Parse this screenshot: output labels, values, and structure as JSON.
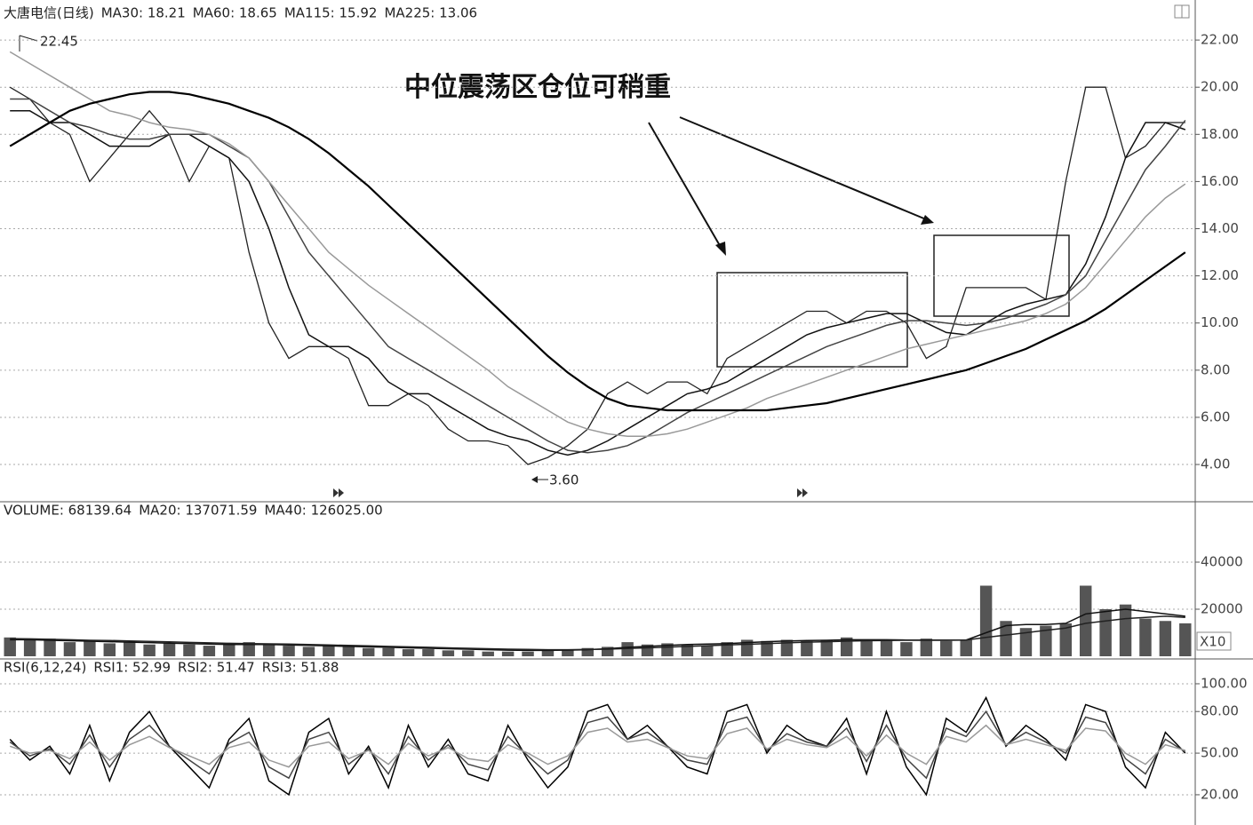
{
  "chart_data": [
    {
      "type": "line",
      "title": "大唐电信(日线)",
      "values": [
        20,
        19.5,
        18.5,
        18,
        16,
        17,
        18,
        19,
        18,
        16,
        17.5,
        17,
        13,
        10,
        8.5,
        9,
        9,
        8.5,
        6.5,
        6.5,
        7,
        6.5,
        5.5,
        5,
        5,
        4.8,
        4,
        4.3,
        4.8,
        5.5,
        7,
        7.5,
        7,
        7.5,
        7.5,
        7,
        8.5,
        9,
        9.5,
        10,
        10.5,
        10.5,
        10,
        10.5,
        10.5,
        10,
        8.5,
        9,
        11.5,
        11.5,
        11.5,
        11.5,
        11,
        16,
        20,
        20,
        17,
        17.5,
        18.5,
        18.5
      ],
      "color": "#222222",
      "series": [
        {
          "name": "MA30: 18.21",
          "color": "#111111",
          "values": [
            19,
            19,
            18.5,
            18.5,
            18,
            17.5,
            17.5,
            17.5,
            18,
            18,
            17.5,
            17,
            16,
            14,
            11.5,
            9.5,
            9,
            9,
            8.5,
            7.5,
            7,
            7,
            6.5,
            6,
            5.5,
            5.2,
            5,
            4.6,
            4.4,
            4.6,
            5,
            5.5,
            6,
            6.5,
            7,
            7.2,
            7.5,
            8,
            8.5,
            9,
            9.5,
            9.8,
            10,
            10.2,
            10.4,
            10.4,
            10,
            9.6,
            9.5,
            10,
            10.5,
            10.8,
            11,
            11.2,
            12.5,
            14.5,
            17,
            18.5,
            18.5,
            18.2
          ]
        },
        {
          "name": "MA60: 18.65",
          "color": "#444444",
          "values": [
            19.5,
            19.5,
            19,
            18.5,
            18.3,
            18,
            17.8,
            17.8,
            18,
            18,
            18,
            17.5,
            17,
            16,
            14.5,
            13,
            12,
            11,
            10,
            9,
            8.5,
            8,
            7.5,
            7,
            6.5,
            6,
            5.5,
            5,
            4.6,
            4.5,
            4.6,
            4.8,
            5.2,
            5.7,
            6.2,
            6.6,
            7,
            7.4,
            7.8,
            8.2,
            8.6,
            9,
            9.3,
            9.6,
            9.9,
            10.1,
            10.1,
            10,
            9.9,
            10,
            10.2,
            10.5,
            10.8,
            11.2,
            12,
            13.5,
            15,
            16.5,
            17.5,
            18.6
          ]
        },
        {
          "name": "MA115: 15.92",
          "color": "#999999",
          "values": [
            21.5,
            21,
            20.5,
            20,
            19.5,
            19,
            18.8,
            18.5,
            18.3,
            18.2,
            18,
            17.6,
            17,
            16,
            15,
            14,
            13,
            12.3,
            11.6,
            11,
            10.4,
            9.8,
            9.2,
            8.6,
            8,
            7.3,
            6.8,
            6.3,
            5.8,
            5.5,
            5.3,
            5.2,
            5.2,
            5.3,
            5.5,
            5.8,
            6.1,
            6.4,
            6.8,
            7.1,
            7.4,
            7.7,
            8,
            8.3,
            8.6,
            8.9,
            9.1,
            9.3,
            9.5,
            9.7,
            9.9,
            10.1,
            10.4,
            10.8,
            11.5,
            12.5,
            13.5,
            14.5,
            15.3,
            15.9
          ]
        },
        {
          "name": "MA225: 13.06",
          "color": "#000000",
          "values": [
            17.5,
            18,
            18.5,
            19,
            19.3,
            19.5,
            19.7,
            19.8,
            19.8,
            19.7,
            19.5,
            19.3,
            19,
            18.7,
            18.3,
            17.8,
            17.2,
            16.5,
            15.8,
            15,
            14.2,
            13.4,
            12.6,
            11.8,
            11,
            10.2,
            9.4,
            8.6,
            7.9,
            7.3,
            6.8,
            6.5,
            6.4,
            6.3,
            6.3,
            6.3,
            6.3,
            6.3,
            6.3,
            6.4,
            6.5,
            6.6,
            6.8,
            7,
            7.2,
            7.4,
            7.6,
            7.8,
            8,
            8.3,
            8.6,
            8.9,
            9.3,
            9.7,
            10.1,
            10.6,
            11.2,
            11.8,
            12.4,
            13
          ]
        }
      ],
      "ylim": [
        2.42,
        23.51
      ],
      "yticks": [
        {
          "value": 4,
          "label": "4.00"
        },
        {
          "value": 6,
          "label": "6.00"
        },
        {
          "value": 8,
          "label": "8.00"
        },
        {
          "value": 10,
          "label": "10.00"
        },
        {
          "value": 12,
          "label": "12.00"
        },
        {
          "value": 14,
          "label": "14.00"
        },
        {
          "value": 16,
          "label": "16.00"
        },
        {
          "value": 18,
          "label": "18.00"
        },
        {
          "value": 20,
          "label": "20.00"
        },
        {
          "value": 22,
          "label": "22.00"
        }
      ],
      "grid": true,
      "annotations": [
        "22.45",
        "3.60",
        "中位震荡区仓位可稍重"
      ]
    },
    {
      "type": "bar",
      "series": [
        {
          "name": "VOLUME: 68139.64",
          "type": "bar",
          "color": "#555555",
          "values": [
            8000,
            7000,
            7500,
            6000,
            6500,
            5500,
            6000,
            5000,
            5500,
            5000,
            4500,
            5000,
            6000,
            5000,
            4500,
            4000,
            4500,
            4000,
            3500,
            3500,
            3000,
            3000,
            2500,
            2500,
            2000,
            2000,
            2000,
            2500,
            3000,
            3500,
            4000,
            6000,
            5000,
            5500,
            5000,
            4500,
            6000,
            7000,
            6500,
            7000,
            6500,
            7000,
            8000,
            6500,
            7000,
            6000,
            7500,
            6500,
            7000,
            30000,
            15000,
            12000,
            13000,
            14000,
            30000,
            20000,
            22000,
            16000,
            15000,
            14000
          ]
        },
        {
          "name": "MA20: 137071.59",
          "type": "line",
          "color": "#111111",
          "values": [
            7000,
            7000,
            6800,
            6600,
            6400,
            6200,
            6000,
            5800,
            5600,
            5400,
            5200,
            5000,
            5000,
            5000,
            4800,
            4600,
            4400,
            4200,
            4000,
            3800,
            3600,
            3400,
            3200,
            3000,
            2800,
            2600,
            2500,
            2500,
            2600,
            2800,
            3200,
            3800,
            4200,
            4600,
            5000,
            5200,
            5400,
            5800,
            6200,
            6500,
            6700,
            6800,
            7000,
            7000,
            7000,
            6900,
            6900,
            6900,
            6900,
            10000,
            13000,
            13500,
            13500,
            14000,
            18000,
            19000,
            20000,
            19000,
            18000,
            17000
          ]
        },
        {
          "name": "MA40: 126025.00",
          "type": "line",
          "color": "#222222",
          "values": [
            7500,
            7400,
            7200,
            7000,
            6800,
            6700,
            6500,
            6300,
            6100,
            5900,
            5700,
            5500,
            5400,
            5300,
            5200,
            5000,
            4800,
            4600,
            4400,
            4200,
            4000,
            3800,
            3600,
            3400,
            3200,
            3000,
            2900,
            2800,
            2800,
            2900,
            3000,
            3300,
            3600,
            3900,
            4200,
            4500,
            4800,
            5100,
            5400,
            5700,
            6000,
            6200,
            6400,
            6600,
            6700,
            6800,
            6800,
            6800,
            6900,
            8000,
            9000,
            10000,
            11000,
            12000,
            14000,
            15000,
            16000,
            16500,
            17000,
            16500
          ]
        }
      ],
      "ylim": [
        0,
        65660
      ],
      "yticks": [
        20000,
        40000
      ],
      "grid": true,
      "unit_label": "X10"
    },
    {
      "type": "line",
      "title": "RSI(6,12,24)",
      "series": [
        {
          "name": "RSI1: 52.99",
          "color": "#000000",
          "values": [
            60,
            45,
            55,
            35,
            70,
            30,
            65,
            80,
            55,
            40,
            25,
            60,
            75,
            30,
            20,
            65,
            75,
            35,
            55,
            25,
            70,
            40,
            60,
            35,
            30,
            70,
            45,
            25,
            40,
            80,
            85,
            60,
            70,
            55,
            40,
            35,
            80,
            85,
            50,
            70,
            60,
            55,
            75,
            35,
            80,
            40,
            20,
            75,
            65,
            90,
            55,
            70,
            60,
            45,
            85,
            80,
            40,
            25,
            65,
            50
          ]
        },
        {
          "name": "RSI2: 51.47",
          "color": "#444444",
          "values": [
            58,
            48,
            53,
            42,
            63,
            40,
            60,
            70,
            55,
            45,
            35,
            57,
            65,
            40,
            32,
            60,
            65,
            42,
            53,
            35,
            62,
            45,
            56,
            42,
            38,
            62,
            48,
            35,
            45,
            72,
            76,
            60,
            65,
            55,
            45,
            42,
            72,
            76,
            52,
            64,
            58,
            55,
            68,
            44,
            70,
            46,
            32,
            68,
            62,
            80,
            56,
            65,
            58,
            50,
            76,
            72,
            46,
            35,
            60,
            51
          ]
        },
        {
          "name": "RSI3: 51.88",
          "color": "#999999",
          "values": [
            55,
            50,
            52,
            46,
            58,
            45,
            56,
            62,
            54,
            48,
            42,
            54,
            58,
            45,
            40,
            55,
            58,
            46,
            52,
            42,
            57,
            48,
            54,
            46,
            44,
            56,
            50,
            42,
            48,
            65,
            68,
            58,
            60,
            54,
            48,
            46,
            64,
            68,
            53,
            60,
            56,
            54,
            62,
            48,
            63,
            50,
            42,
            62,
            58,
            70,
            56,
            60,
            56,
            52,
            68,
            66,
            50,
            42,
            56,
            52
          ]
        }
      ],
      "ylim": [
        -1.8,
        117.9
      ],
      "yticks": [
        {
          "value": 20,
          "label": "20.00"
        },
        {
          "value": 50,
          "label": "50.00"
        },
        {
          "value": 80,
          "label": "80.00"
        },
        {
          "value": 100,
          "label": "100.00"
        }
      ],
      "grid": true
    }
  ]
}
